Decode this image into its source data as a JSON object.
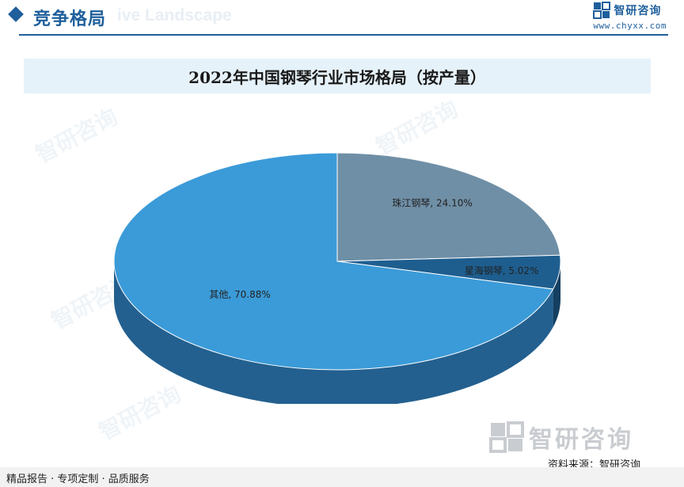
{
  "header": {
    "section_title": "竞争格局",
    "watermark_text": "ive Landscape",
    "brand_name": "智研咨询",
    "brand_url": "www.chyxx.com"
  },
  "chart_data": {
    "type": "pie",
    "title": "2022年中国钢琴行业市场格局（按产量）",
    "slices": [
      {
        "name": "珠江钢琴",
        "value": 24.1,
        "label": "珠江钢琴, 24.10%",
        "color": "#6f8fa6",
        "side_color": "#4d6a80"
      },
      {
        "name": "星海钢琴",
        "value": 5.02,
        "label": "星海钢琴, 5.02%",
        "color": "#1e5e8f",
        "side_color": "#143f60"
      },
      {
        "name": "其他",
        "value": 70.88,
        "label": "其他, 70.88%",
        "color": "#3b9bd8",
        "side_color": "#23608f"
      }
    ]
  },
  "watermark": {
    "text": "智研咨询"
  },
  "footer": {
    "bottom_brand": "智研咨询",
    "source": "资料来源：智研咨询",
    "tagline": "精品报告 · 专项定制 · 品质服务"
  }
}
